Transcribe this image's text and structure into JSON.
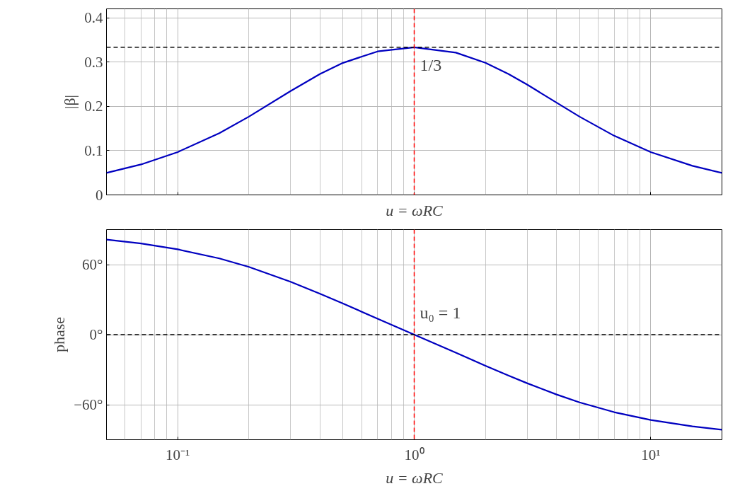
{
  "chart_data": [
    {
      "type": "line",
      "xlabel": "u = ωRC",
      "ylabel": "|β|",
      "log": "x",
      "grid": true,
      "tick_labels": "y",
      "x": [
        0.05,
        0.07,
        0.1,
        0.15,
        0.2,
        0.3,
        0.4,
        0.5,
        0.7,
        1,
        1.5,
        2,
        2.5,
        3,
        4,
        5,
        7,
        10,
        15,
        20
      ],
      "series": [
        {
          "color": "#0000c0",
          "values": [
            0.0496,
            0.0688,
            0.0967,
            0.1394,
            0.1767,
            0.2344,
            0.2731,
            0.2981,
            0.3239,
            0.3333,
            0.3212,
            0.2981,
            0.2731,
            0.2491,
            0.2082,
            0.1767,
            0.1336,
            0.0967,
            0.0657,
            0.0496
          ]
        }
      ],
      "xlim": [
        0.05,
        20
      ],
      "ylim": [
        0,
        0.42
      ],
      "xticks": [
        {
          "value": 0.1,
          "label": null
        },
        {
          "value": 1,
          "label": null
        },
        {
          "value": 10,
          "label": null
        }
      ],
      "yticks": [
        0,
        0.1,
        0.2,
        0.3,
        0.4
      ],
      "ref_lines": [
        {
          "axis": "y",
          "value": 0.3333,
          "color": "#000000",
          "line_style": "dashed"
        },
        {
          "axis": "x",
          "value": 1,
          "color": "#ff0000",
          "line_style": "dashed"
        }
      ],
      "annotations": [
        {
          "text": "1/3",
          "x": 1,
          "y": 0.3333
        }
      ]
    },
    {
      "type": "line",
      "xlabel": "u = ωRC",
      "ylabel": "phase",
      "log": "x",
      "grid": true,
      "x": [
        0.05,
        0.07,
        0.1,
        0.15,
        0.2,
        0.3,
        0.4,
        0.5,
        0.7,
        1,
        1.5,
        2,
        2.5,
        3,
        4,
        5,
        7,
        10,
        15,
        20
      ],
      "series": [
        {
          "color": "#0000c0",
          "values": [
            81.4,
            78.1,
            73.1,
            65.3,
            58.0,
            45.3,
            35.0,
            26.6,
            13.7,
            0,
            -15.5,
            -26.6,
            -35.0,
            -41.6,
            -51.3,
            -58.0,
            -66.4,
            -73.1,
            -78.6,
            -81.4
          ]
        }
      ],
      "xlim": [
        0.05,
        20
      ],
      "ylim": [
        -90,
        90
      ],
      "xticks": [
        {
          "value": 0.1,
          "label": "10⁻¹"
        },
        {
          "value": 1,
          "label": "10⁰"
        },
        {
          "value": 10,
          "label": "10¹"
        }
      ],
      "yticks": [
        {
          "value": -60,
          "label": "−60°"
        },
        {
          "value": 0,
          "label": "0°"
        },
        {
          "value": 60,
          "label": "60°"
        }
      ],
      "ref_lines": [
        {
          "axis": "y",
          "value": 0,
          "color": "#000000",
          "line_style": "dashed"
        },
        {
          "axis": "x",
          "value": 1,
          "color": "#ff0000",
          "line_style": "dashed"
        }
      ],
      "annotations": [
        {
          "text": "u₀ = 1",
          "x": 1,
          "y": 0
        }
      ]
    }
  ]
}
